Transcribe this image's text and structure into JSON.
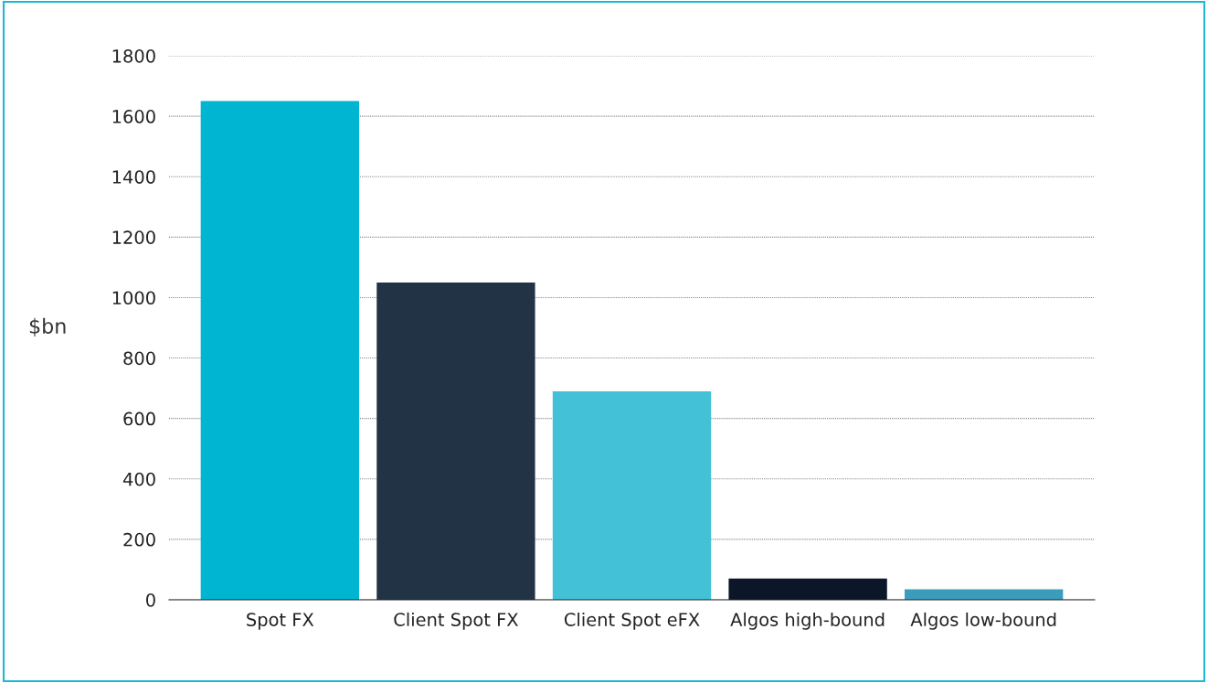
{
  "chart_data": {
    "type": "bar",
    "ylabel": "$bn",
    "categories": [
      "Spot FX",
      "Client Spot FX",
      "Client Spot eFX",
      "Algos high-bound",
      "Algos low-bound"
    ],
    "values": [
      1650,
      1050,
      690,
      70,
      35
    ],
    "colors": [
      "#00b5d1",
      "#233346",
      "#43c1d6",
      "#0b1628",
      "#3a9dbb"
    ],
    "ylim": [
      0,
      1800
    ],
    "yticks": [
      0,
      200,
      400,
      600,
      800,
      1000,
      1200,
      1400,
      1600,
      1800
    ],
    "grid": "y",
    "legend": false
  }
}
